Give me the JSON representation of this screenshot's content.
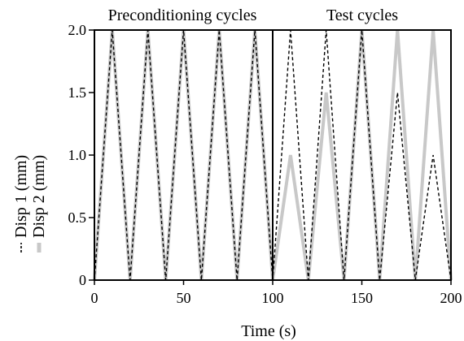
{
  "chart_data": {
    "type": "line",
    "xlabel": "Time  (s)",
    "xlim": [
      0,
      200
    ],
    "ylim": [
      0,
      2.0
    ],
    "x_ticks": [
      0,
      50,
      100,
      150,
      200
    ],
    "x_tick_labels": [
      "0",
      "50",
      "100",
      "150",
      "200"
    ],
    "y_ticks": [
      0,
      0.5,
      1.0,
      1.5,
      2.0
    ],
    "y_tick_labels": [
      "0",
      "0.5",
      "1.0",
      "1.5",
      "2.0"
    ],
    "grid": false,
    "legend": "rotated along left side",
    "phase_divider_x": 100,
    "phases": [
      {
        "label": "Preconditioning cycles",
        "x_range": [
          0,
          100
        ]
      },
      {
        "label": "Test cycles",
        "x_range": [
          100,
          200
        ]
      }
    ],
    "series": [
      {
        "name": "Disp 1 (mm)",
        "style": "dashed",
        "color": "#000000",
        "x": [
          0,
          10,
          20,
          30,
          40,
          50,
          60,
          70,
          80,
          90,
          100,
          110,
          120,
          130,
          140,
          150,
          160,
          170,
          180,
          190,
          200
        ],
        "y": [
          0,
          2.0,
          0,
          2.0,
          0,
          2.0,
          0,
          2.0,
          0,
          2.0,
          0,
          2.0,
          0,
          2.0,
          0,
          2.0,
          0,
          1.5,
          0,
          1.0,
          0
        ]
      },
      {
        "name": "Disp 2 (mm)",
        "style": "solid",
        "color": "#c8c8c8",
        "x": [
          0,
          10,
          20,
          30,
          40,
          50,
          60,
          70,
          80,
          90,
          100,
          110,
          120,
          130,
          140,
          150,
          160,
          170,
          180,
          190,
          200
        ],
        "y": [
          0,
          2.0,
          0,
          2.0,
          0,
          2.0,
          0,
          2.0,
          0,
          2.0,
          0,
          1.0,
          0,
          1.5,
          0,
          2.0,
          0,
          2.0,
          0,
          2.0,
          0
        ]
      }
    ]
  }
}
